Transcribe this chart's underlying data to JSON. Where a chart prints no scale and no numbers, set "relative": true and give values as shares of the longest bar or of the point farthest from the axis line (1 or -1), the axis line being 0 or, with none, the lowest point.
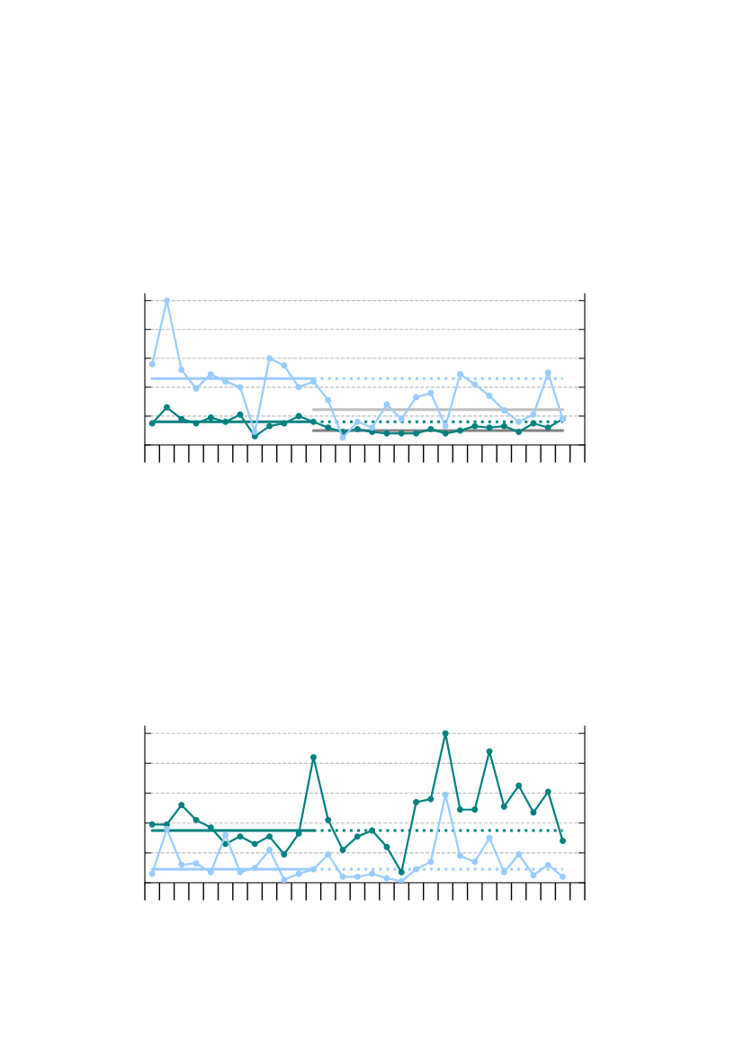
{
  "chart_data": [
    {
      "type": "line",
      "relative": true,
      "grid": "y",
      "categories": [
        null,
        null,
        null,
        null,
        null,
        null,
        null,
        null,
        null,
        null,
        null,
        null,
        null,
        null,
        null,
        null,
        null,
        null,
        null,
        null,
        null,
        null,
        null,
        null,
        null,
        null,
        null,
        null,
        null,
        null
      ],
      "series": [
        {
          "color": "#008080",
          "marker": "circle",
          "values": [
            0.15,
            0.26,
            0.18,
            0.15,
            0.19,
            0.16,
            0.21,
            0.06,
            0.13,
            0.15,
            0.2,
            0.16,
            0.12,
            0.09,
            0.11,
            0.09,
            0.08,
            0.08,
            0.08,
            0.11,
            0.08,
            0.1,
            0.13,
            0.12,
            0.13,
            0.09,
            0.15,
            0.12,
            0.18,
            null
          ]
        },
        {
          "color": "#99ccff",
          "marker": "circle",
          "values": [
            0.56,
            1,
            0.52,
            0.39,
            0.49,
            0.44,
            0.4,
            0.09,
            0.6,
            0.55,
            0.4,
            0.44,
            0.31,
            0.05,
            0.16,
            0.12,
            0.28,
            0.18,
            0.33,
            0.36,
            0.13,
            0.49,
            0.42,
            0.34,
            0.24,
            0.16,
            0.21,
            0.5,
            0.18,
            null
          ]
        },
        {
          "color": "#008080",
          "line_style": "solid",
          "values": [
            0.16,
            0.16,
            0.16,
            0.16,
            0.16,
            0.16,
            0.16,
            0.16,
            0.16,
            0.16,
            0.16,
            0.16,
            null,
            null,
            null,
            null,
            null,
            null,
            null,
            null,
            null,
            null,
            null,
            null,
            null,
            null,
            null,
            null,
            null,
            null
          ]
        },
        {
          "color": "#99ccff",
          "line_style": "solid",
          "values": [
            0.46,
            0.46,
            0.46,
            0.46,
            0.46,
            0.46,
            0.46,
            0.46,
            0.46,
            0.46,
            0.46,
            0.46,
            null,
            null,
            null,
            null,
            null,
            null,
            null,
            null,
            null,
            null,
            null,
            null,
            null,
            null,
            null,
            null,
            null,
            null
          ]
        },
        {
          "color": "#008080",
          "line_style": "dotted",
          "values": [
            null,
            null,
            null,
            null,
            null,
            null,
            null,
            null,
            null,
            null,
            null,
            0.16,
            0.16,
            0.16,
            0.16,
            0.16,
            0.16,
            0.16,
            0.16,
            0.16,
            0.16,
            0.16,
            0.16,
            0.16,
            0.16,
            0.16,
            0.16,
            0.16,
            0.16,
            null
          ]
        },
        {
          "color": "#99ccff",
          "line_style": "dotted",
          "values": [
            null,
            null,
            null,
            null,
            null,
            null,
            null,
            null,
            null,
            null,
            null,
            0.46,
            0.46,
            0.46,
            0.46,
            0.46,
            0.46,
            0.46,
            0.46,
            0.46,
            0.46,
            0.46,
            0.46,
            0.46,
            0.46,
            0.46,
            0.46,
            0.46,
            0.46,
            null
          ]
        },
        {
          "color": "#808080",
          "line_style": "solid",
          "values": [
            null,
            null,
            null,
            null,
            null,
            null,
            null,
            null,
            null,
            null,
            null,
            0.1,
            0.1,
            0.1,
            0.1,
            0.1,
            0.1,
            0.1,
            0.1,
            0.1,
            0.1,
            0.1,
            0.1,
            0.1,
            0.1,
            0.1,
            0.1,
            0.1,
            0.1,
            null
          ]
        },
        {
          "color": "#c0c0c0",
          "line_style": "solid",
          "values": [
            null,
            null,
            null,
            null,
            null,
            null,
            null,
            null,
            null,
            null,
            null,
            0.245,
            0.245,
            0.245,
            0.245,
            0.245,
            0.245,
            0.245,
            0.245,
            0.245,
            0.245,
            0.245,
            0.245,
            0.245,
            0.245,
            0.245,
            0.245,
            0.245,
            0.245,
            null
          ]
        }
      ]
    },
    {
      "type": "line",
      "relative": true,
      "grid": "y",
      "categories": [
        null,
        null,
        null,
        null,
        null,
        null,
        null,
        null,
        null,
        null,
        null,
        null,
        null,
        null,
        null,
        null,
        null,
        null,
        null,
        null,
        null,
        null,
        null,
        null,
        null,
        null,
        null,
        null,
        null,
        null
      ],
      "series": [
        {
          "color": "#008080",
          "marker": "circle",
          "values": [
            0.39,
            0.39,
            0.52,
            0.42,
            0.37,
            0.26,
            0.31,
            0.26,
            0.31,
            0.19,
            0.33,
            0.84,
            0.42,
            0.22,
            0.31,
            0.35,
            0.24,
            0.07,
            0.54,
            0.56,
            1,
            0.49,
            0.49,
            0.88,
            0.51,
            0.65,
            0.47,
            0.61,
            0.28,
            null
          ]
        },
        {
          "color": "#008080",
          "line_style": "solid",
          "values": [
            0.35,
            0.35,
            0.35,
            0.35,
            0.35,
            0.35,
            0.35,
            0.35,
            0.35,
            0.35,
            0.35,
            0.35,
            null,
            null,
            null,
            null,
            null,
            null,
            null,
            null,
            null,
            null,
            null,
            null,
            null,
            null,
            null,
            null,
            null,
            null
          ]
        },
        {
          "color": "#99ccff",
          "marker": "circle",
          "values": [
            0.06,
            0.36,
            0.12,
            0.13,
            0.07,
            0.32,
            0.07,
            0.1,
            0.22,
            0.02,
            0.06,
            0.09,
            0.19,
            0.04,
            0.04,
            0.06,
            0.03,
            0.01,
            0.09,
            0.14,
            0.59,
            0.18,
            0.14,
            0.3,
            0.07,
            0.19,
            0.05,
            0.12,
            0.04,
            null
          ]
        },
        {
          "color": "#99ccff",
          "line_style": "solid",
          "values": [
            0.09,
            0.09,
            0.09,
            0.09,
            0.09,
            0.09,
            0.09,
            0.09,
            0.09,
            0.09,
            0.09,
            0.09,
            null,
            null,
            null,
            null,
            null,
            null,
            null,
            null,
            null,
            null,
            null,
            null,
            null,
            null,
            null,
            null,
            null,
            null
          ]
        },
        {
          "color": "#008080",
          "line_style": "dotted",
          "values": [
            null,
            null,
            null,
            null,
            null,
            null,
            null,
            null,
            null,
            null,
            null,
            0.35,
            0.35,
            0.35,
            0.35,
            0.35,
            0.35,
            0.35,
            0.35,
            0.35,
            0.35,
            0.35,
            0.35,
            0.35,
            0.35,
            0.35,
            0.35,
            0.35,
            0.35,
            null
          ]
        },
        {
          "color": "#99ccff",
          "line_style": "dotted",
          "values": [
            null,
            null,
            null,
            null,
            null,
            null,
            null,
            null,
            null,
            null,
            null,
            0.09,
            0.09,
            0.09,
            0.09,
            0.09,
            0.09,
            0.09,
            0.09,
            0.09,
            0.09,
            0.09,
            0.09,
            0.09,
            0.09,
            0.09,
            0.09,
            0.09,
            0.09,
            null
          ]
        }
      ]
    }
  ]
}
